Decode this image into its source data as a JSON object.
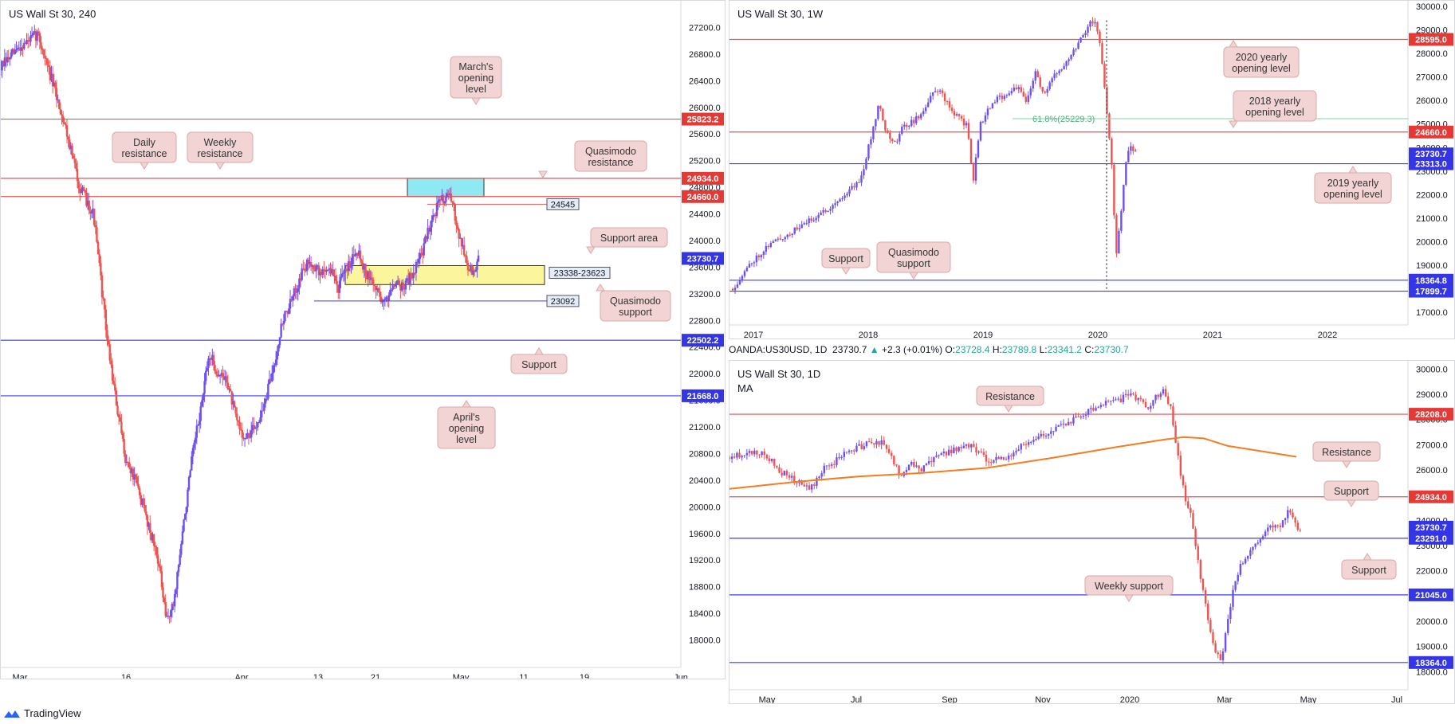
{
  "footer": {
    "brand": "TradingView",
    "logo_icon": "tradingview-logo-icon"
  },
  "info_bar": {
    "symbol": "OANDA:US30USD, 1D",
    "last": "23730.7",
    "arrow": "▲",
    "change": "+2.3 (+0.01%)",
    "o_label": "O:",
    "o": "23728.4",
    "h_label": "H:",
    "h": "23789.8",
    "l_label": "L:",
    "l": "23341.2",
    "c_label": "C:",
    "c": "23730.7"
  },
  "colors": {
    "up": "#6f4ff2",
    "down": "#ef5350",
    "resistance_line": "#e05555",
    "support_line": "#3c3cf0",
    "label_red": "#e53935",
    "label_blue": "#3535e8",
    "callout_bg": "#f3d4d4",
    "callout_border": "#d9aaaa",
    "ma_line": "#f57c20",
    "support_area_fill": "#fbf59b",
    "resistance_zone_fill": "#8fe9f3"
  },
  "chart_data": [
    {
      "id": "h4",
      "type": "candlestick",
      "title": "US Wall St 30, 240",
      "ylim": [
        17600,
        27600
      ],
      "y_ticks": [
        "27200.0",
        "26800.0",
        "26400.0",
        "26000.0",
        "25600.0",
        "25200.0",
        "24800.0",
        "24400.0",
        "24000.0",
        "23600.0",
        "23200.0",
        "22800.0",
        "22400.0",
        "22000.0",
        "21600.0",
        "21200.0",
        "20800.0",
        "20400.0",
        "20000.0",
        "19600.0",
        "19200.0",
        "18800.0",
        "18400.0",
        "18000.0"
      ],
      "x_ticks": [
        "Mar",
        "16",
        "Apr",
        "13",
        "21",
        "May",
        "11",
        "19",
        "Jun"
      ],
      "trend_path": [
        [
          0,
          26600
        ],
        [
          20,
          26900
        ],
        [
          40,
          27100
        ],
        [
          55,
          26400
        ],
        [
          70,
          25700
        ],
        [
          85,
          24800
        ],
        [
          100,
          24400
        ],
        [
          115,
          22500
        ],
        [
          125,
          21500
        ],
        [
          135,
          20700
        ],
        [
          145,
          20400
        ],
        [
          160,
          19700
        ],
        [
          170,
          19200
        ],
        [
          178,
          18300
        ],
        [
          186,
          18500
        ],
        [
          196,
          19600
        ],
        [
          206,
          20700
        ],
        [
          216,
          21500
        ],
        [
          225,
          22300
        ],
        [
          234,
          22000
        ],
        [
          244,
          21900
        ],
        [
          254,
          21300
        ],
        [
          264,
          21000
        ],
        [
          274,
          21200
        ],
        [
          284,
          21500
        ],
        [
          294,
          22100
        ],
        [
          304,
          22800
        ],
        [
          314,
          23100
        ],
        [
          324,
          23500
        ],
        [
          334,
          23700
        ],
        [
          344,
          23500
        ],
        [
          354,
          23600
        ],
        [
          364,
          23300
        ],
        [
          374,
          23600
        ],
        [
          384,
          23900
        ],
        [
          394,
          23500
        ],
        [
          404,
          23300
        ],
        [
          414,
          23050
        ],
        [
          424,
          23400
        ],
        [
          434,
          23300
        ],
        [
          444,
          23500
        ],
        [
          454,
          23800
        ],
        [
          464,
          24300
        ],
        [
          474,
          24600
        ],
        [
          482,
          24700
        ],
        [
          488,
          24500
        ],
        [
          496,
          24000
        ],
        [
          504,
          23600
        ],
        [
          510,
          23500
        ],
        [
          516,
          23730
        ]
      ],
      "levels": [
        {
          "label": "25823.2",
          "value": 25823.2,
          "color": "#e05555",
          "badge": "#e53935"
        },
        {
          "label": "24934.0",
          "value": 24934.0,
          "color": "#e05555",
          "badge": "#e53935"
        },
        {
          "label": "24660.0",
          "value": 24660.0,
          "color": "#e05555",
          "badge": "#e53935"
        },
        {
          "label": "23730.7",
          "value": 23730.7,
          "color": "#3c3cf0",
          "badge": "#3535e8",
          "current": true
        },
        {
          "label": "22502.2",
          "value": 22502.2,
          "color": "#3c3cf0",
          "badge": "#3535e8"
        },
        {
          "label": "21668.0",
          "value": 21668.0,
          "color": "#3c3cf0",
          "badge": "#3535e8"
        }
      ],
      "short_levels": [
        {
          "label": "24545",
          "value": 24545,
          "color": "#e05555"
        },
        {
          "label": "23092",
          "value": 23092,
          "color": "#3c3cf0"
        }
      ],
      "zones": [
        {
          "label": "23338-23623",
          "from": 23338,
          "to": 23623,
          "kind": "support_area"
        },
        {
          "label": "",
          "from": 24660,
          "to": 24934,
          "kind": "resistance_zone"
        }
      ],
      "callouts": [
        {
          "text": "March's opening level",
          "pointer": "down"
        },
        {
          "text": "Daily resistance",
          "pointer": "down"
        },
        {
          "text": "Weekly resistance",
          "pointer": "down"
        },
        {
          "text": "Quasimodo resistance",
          "pointer": "down"
        },
        {
          "text": "Support area",
          "pointer": "down"
        },
        {
          "text": "Quasimodo support",
          "pointer": "up"
        },
        {
          "text": "Support",
          "pointer": "up"
        },
        {
          "text": "April's opening level",
          "pointer": "up"
        }
      ]
    },
    {
      "id": "w1",
      "type": "candlestick",
      "title": "US Wall St 30, 1W",
      "ylim": [
        16700,
        30100
      ],
      "y_ticks": [
        "30000.0",
        "29000.0",
        "28000.0",
        "27000.0",
        "26000.0",
        "25000.0",
        "24000.0",
        "23000.0",
        "22000.0",
        "21000.0",
        "20000.0",
        "19000.0",
        "18000.0",
        "17000.0"
      ],
      "x_ticks": [
        "2017",
        "2018",
        "2019",
        "2020",
        "2021",
        "2022"
      ],
      "trend_path": [
        [
          0,
          18000
        ],
        [
          20,
          19100
        ],
        [
          40,
          19900
        ],
        [
          60,
          20300
        ],
        [
          80,
          20800
        ],
        [
          100,
          21300
        ],
        [
          120,
          21900
        ],
        [
          140,
          22700
        ],
        [
          150,
          24300
        ],
        [
          160,
          26000
        ],
        [
          166,
          24800
        ],
        [
          176,
          24100
        ],
        [
          186,
          24900
        ],
        [
          196,
          25100
        ],
        [
          206,
          25400
        ],
        [
          216,
          26200
        ],
        [
          226,
          26500
        ],
        [
          236,
          25700
        ],
        [
          246,
          25300
        ],
        [
          256,
          24900
        ],
        [
          262,
          22500
        ],
        [
          270,
          25000
        ],
        [
          280,
          25700
        ],
        [
          290,
          26100
        ],
        [
          300,
          26300
        ],
        [
          310,
          26600
        ],
        [
          320,
          25900
        ],
        [
          330,
          27200
        ],
        [
          340,
          26200
        ],
        [
          350,
          27000
        ],
        [
          360,
          27500
        ],
        [
          370,
          28000
        ],
        [
          380,
          28700
        ],
        [
          390,
          29300
        ],
        [
          396,
          29400
        ],
        [
          402,
          28000
        ],
        [
          408,
          25500
        ],
        [
          414,
          23000
        ],
        [
          418,
          19200
        ],
        [
          424,
          21500
        ],
        [
          430,
          23800
        ],
        [
          436,
          24000
        ],
        [
          440,
          23730
        ]
      ],
      "fib_label": "61.8%(25229.3)",
      "fib_value": 25229.3,
      "levels": [
        {
          "label": "28595.0",
          "value": 28595.0,
          "color": "#e05555",
          "badge": "#e53935"
        },
        {
          "label": "24660.0",
          "value": 24660.0,
          "color": "#e05555",
          "badge": "#e53935"
        },
        {
          "label": "23730.7",
          "value": 23730.7,
          "color": "#3c3cf0",
          "badge": "#3535e8",
          "current": true
        },
        {
          "label": "23313.0",
          "value": 23313.0,
          "color": "#3c3cf0",
          "badge": "#3535e8"
        },
        {
          "label": "18364.8",
          "value": 18364.8,
          "color": "#3c3cf0",
          "badge": "#3535e8"
        },
        {
          "label": "17899.7",
          "value": 17899.7,
          "color": "#3c3cf0",
          "badge": "#3535e8"
        }
      ],
      "callouts": [
        {
          "text": "2020 yearly opening level",
          "pointer": "up"
        },
        {
          "text": "2018 yearly opening level",
          "pointer": "down"
        },
        {
          "text": "2019 yearly opening level",
          "pointer": "up"
        },
        {
          "text": "Support",
          "pointer": "down"
        },
        {
          "text": "Quasimodo support",
          "pointer": "down"
        }
      ]
    },
    {
      "id": "d1",
      "type": "candlestick",
      "title": "US Wall St 30, 1D",
      "indicator": "MA",
      "ylim": [
        17600,
        30200
      ],
      "y_ticks": [
        "30000.0",
        "29000.0",
        "28000.0",
        "27000.0",
        "26000.0",
        "25000.0",
        "24000.0",
        "23000.0",
        "22000.0",
        "21000.0",
        "20000.0",
        "19000.0",
        "18000.0"
      ],
      "x_ticks": [
        "May",
        "Jul",
        "Sep",
        "Nov",
        "2020",
        "Mar",
        "May",
        "Jul"
      ],
      "trend_path": [
        [
          0,
          26500
        ],
        [
          25,
          26700
        ],
        [
          45,
          26600
        ],
        [
          65,
          25900
        ],
        [
          85,
          25500
        ],
        [
          100,
          25200
        ],
        [
          115,
          26000
        ],
        [
          130,
          26300
        ],
        [
          150,
          26800
        ],
        [
          170,
          27000
        ],
        [
          188,
          27100
        ],
        [
          200,
          26600
        ],
        [
          212,
          25800
        ],
        [
          225,
          26300
        ],
        [
          240,
          26000
        ],
        [
          260,
          26600
        ],
        [
          280,
          26800
        ],
        [
          300,
          27000
        ],
        [
          320,
          26400
        ],
        [
          340,
          26400
        ],
        [
          360,
          26900
        ],
        [
          380,
          27200
        ],
        [
          400,
          27600
        ],
        [
          420,
          27900
        ],
        [
          440,
          28200
        ],
        [
          460,
          28600
        ],
        [
          480,
          28700
        ],
        [
          500,
          29000
        ],
        [
          520,
          28500
        ],
        [
          538,
          29200
        ],
        [
          550,
          28300
        ],
        [
          560,
          26000
        ],
        [
          566,
          25000
        ],
        [
          574,
          24200
        ],
        [
          582,
          22500
        ],
        [
          590,
          21000
        ],
        [
          598,
          19500
        ],
        [
          606,
          18700
        ],
        [
          612,
          18300
        ],
        [
          618,
          19800
        ],
        [
          628,
          21500
        ],
        [
          638,
          22400
        ],
        [
          650,
          22800
        ],
        [
          660,
          23300
        ],
        [
          672,
          23700
        ],
        [
          684,
          23800
        ],
        [
          694,
          24300
        ],
        [
          700,
          24200
        ],
        [
          706,
          23600
        ],
        [
          710,
          23730
        ]
      ],
      "ma_path": [
        [
          0,
          25250
        ],
        [
          80,
          25520
        ],
        [
          160,
          25740
        ],
        [
          240,
          25880
        ],
        [
          320,
          26080
        ],
        [
          400,
          26470
        ],
        [
          480,
          26900
        ],
        [
          540,
          27200
        ],
        [
          565,
          27300
        ],
        [
          590,
          27250
        ],
        [
          620,
          26950
        ],
        [
          660,
          26750
        ],
        [
          705,
          26520
        ]
      ],
      "levels": [
        {
          "label": "28208.0",
          "value": 28208.0,
          "color": "#e05555",
          "badge": "#e53935"
        },
        {
          "label": "24934.0",
          "value": 24934.0,
          "color": "#e05555",
          "badge": "#e53935"
        },
        {
          "label": "23730.7",
          "value": 23730.7,
          "color": "#3c3cf0",
          "badge": "#3535e8",
          "current": true
        },
        {
          "label": "23291.0",
          "value": 23291.0,
          "color": "#3c3cf0",
          "badge": "#3535e8"
        },
        {
          "label": "21045.0",
          "value": 21045.0,
          "color": "#3c3cf0",
          "badge": "#3535e8"
        },
        {
          "label": "18364.0",
          "value": 18364.0,
          "color": "#3c3cf0",
          "badge": "#3535e8"
        }
      ],
      "callouts": [
        {
          "text": "Resistance",
          "pointer": "down"
        },
        {
          "text": "Resistance",
          "pointer": "down"
        },
        {
          "text": "Support",
          "pointer": "down"
        },
        {
          "text": "Support",
          "pointer": "up"
        },
        {
          "text": "Weekly support",
          "pointer": "down"
        }
      ]
    }
  ]
}
